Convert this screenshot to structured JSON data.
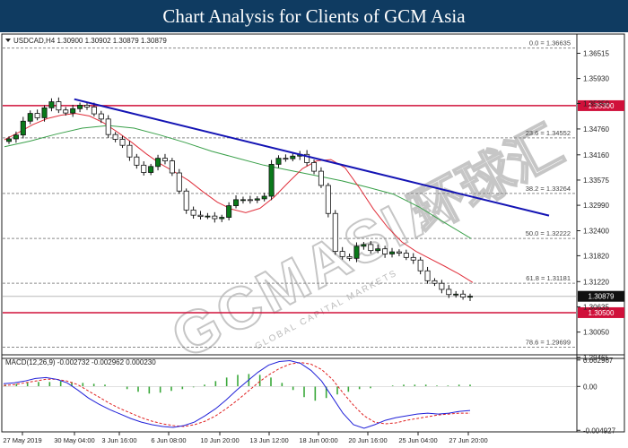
{
  "banner": {
    "title": "Chart Analysis for Clients of GCM Asia"
  },
  "colors": {
    "banner_bg": "#0f3b61",
    "price_line_up": "#0a7a1a",
    "ma_fast": "#e0303c",
    "ma_slow": "#3aa04a",
    "trendline": "#1414b4",
    "level_line": "#d0103a",
    "macd_line": "#2020d8",
    "signal_line": "#e02020",
    "histogram": "#3aa83a"
  },
  "watermark": {
    "brand": "GCMASIA",
    "chinese": "环球汇",
    "subtitle": "GLOBAL CAPITAL MARKETS"
  },
  "chart_data": {
    "type": "candlestick",
    "symbol": "USDCAD,H4",
    "ohlc_header": "USDCAD,H4  1.30900 1.30902 1.30879 1.30879",
    "current_price": 1.30879,
    "current_price_label": "1.30879",
    "ylim": [
      1.2946,
      1.3694
    ],
    "y_ticks": [
      1.36515,
      1.3593,
      1.3535,
      1.3476,
      1.3416,
      1.33575,
      1.3299,
      1.324,
      1.3182,
      1.3122,
      1.30635,
      1.3005,
      1.29465
    ],
    "y_tick_labels": [
      "1.36515",
      "1.35930",
      "1.35350",
      "1.34760",
      "1.34160",
      "1.33575",
      "1.32990",
      "1.32400",
      "1.31820",
      "1.31220",
      "1.30635",
      "1.30050",
      "1.29465"
    ],
    "x_labels": [
      "27 May 2019",
      "30 May 04:00",
      "3 Jun 16:00",
      "6 Jun 08:00",
      "10 Jun 20:00",
      "13 Jun 12:00",
      "18 Jun 00:00",
      "20 Jun 16:00",
      "25 Jun 04:00",
      "27 Jun 20:00"
    ],
    "fibonacci": [
      {
        "label": "0.0 = 1.36635",
        "value": 1.36635
      },
      {
        "label": "23.6 = 1.34552",
        "value": 1.34552
      },
      {
        "label": "38.2 = 1.33264",
        "value": 1.33264
      },
      {
        "label": "50.0 = 1.32222",
        "value": 1.32222
      },
      {
        "label": "61.8 = 1.31181",
        "value": 1.31181
      },
      {
        "label": "78.6 = 1.29699",
        "value": 1.29699
      }
    ],
    "key_levels": [
      {
        "label": "1.35300",
        "value": 1.353
      },
      {
        "label": "1.30500",
        "value": 1.305
      }
    ],
    "trendline": [
      {
        "x": 0.128,
        "y": 1.3545
      },
      {
        "x": 0.993,
        "y": 1.3275
      }
    ],
    "closes": [
      1.3453,
      1.3462,
      1.3494,
      1.3512,
      1.3502,
      1.3525,
      1.3539,
      1.352,
      1.3513,
      1.3523,
      1.3531,
      1.3527,
      1.3511,
      1.3499,
      1.3463,
      1.3452,
      1.3438,
      1.3411,
      1.3392,
      1.3375,
      1.3389,
      1.3408,
      1.3402,
      1.3374,
      1.3332,
      1.3288,
      1.3276,
      1.3273,
      1.3274,
      1.3268,
      1.3271,
      1.3298,
      1.3312,
      1.3312,
      1.3311,
      1.3314,
      1.332,
      1.3394,
      1.3408,
      1.3407,
      1.3413,
      1.3417,
      1.3398,
      1.3378,
      1.3345,
      1.328,
      1.3192,
      1.318,
      1.3176,
      1.3204,
      1.3208,
      1.3194,
      1.3198,
      1.3186,
      1.3191,
      1.3188,
      1.3178,
      1.3172,
      1.3147,
      1.3124,
      1.3118,
      1.3104,
      1.3092,
      1.3093,
      1.3086,
      1.3088
    ],
    "ma_fast": [
      1.3451,
      1.3468,
      1.3486,
      1.35,
      1.3508,
      1.3512,
      1.3506,
      1.349,
      1.3468,
      1.3444,
      1.3418,
      1.3395,
      1.3376,
      1.3356,
      1.333,
      1.3306,
      1.329,
      1.3282,
      1.3292,
      1.3318,
      1.3352,
      1.3384,
      1.3402,
      1.3405,
      1.3386,
      1.334,
      1.329,
      1.3248,
      1.3214,
      1.3192,
      1.3175,
      1.3158,
      1.314,
      1.312
    ],
    "ma_slow": [
      1.3435,
      1.3448,
      1.3464,
      1.3478,
      1.3484,
      1.3478,
      1.3462,
      1.3444,
      1.3424,
      1.3408,
      1.3392,
      1.338,
      1.3368,
      1.3356,
      1.3341,
      1.3325,
      1.3295,
      1.3258,
      1.3222
    ],
    "macd": {
      "name": "MACD(12,26,9)",
      "header": "MACD(12,26,9) -0.002732 -0.002962 0.000230",
      "values": [
        -0.002732,
        -0.002962,
        0.00023
      ],
      "ylim": [
        -0.0049,
        0.00335
      ],
      "y_tick_labels": [
        "0.002967",
        "0.00",
        "-0.004927"
      ],
      "histogram": [
        0.0002,
        0.0003,
        0.0004,
        0.0005,
        0.0005,
        0.0006,
        0.0005,
        0.0004,
        0.0003,
        0.0002,
        0.0,
        -0.0003,
        -0.0006,
        -0.0008,
        -0.0007,
        -0.0005,
        -0.0003,
        -0.0001,
        0.0002,
        0.0006,
        0.001,
        0.0013,
        0.0014,
        0.0013,
        0.001,
        0.0004,
        -0.0004,
        -0.0012,
        -0.0016,
        -0.0013,
        -0.0009,
        -0.0006,
        -0.0003,
        -0.0002,
        0.0,
        0.0001,
        0.0002,
        0.0002,
        0.0002,
        0.0001,
        0.0001,
        0.0002,
        0.0002
      ],
      "macd_line": [
        0.0003,
        0.0004,
        0.0006,
        0.0009,
        0.001,
        0.0008,
        0.0004,
        -0.0004,
        -0.0013,
        -0.002,
        -0.0026,
        -0.0031,
        -0.0036,
        -0.004,
        -0.0043,
        -0.0045,
        -0.0046,
        -0.0044,
        -0.004,
        -0.0033,
        -0.0025,
        -0.0015,
        -0.0004,
        0.0006,
        0.0016,
        0.0024,
        0.0028,
        0.0029,
        0.0026,
        0.0018,
        0.0006,
        -0.0012,
        -0.003,
        -0.0043,
        -0.0047,
        -0.0043,
        -0.0038,
        -0.0035,
        -0.0033,
        -0.0031,
        -0.003,
        -0.0031,
        -0.003,
        -0.0028,
        -0.0027
      ],
      "signal_line": [
        0.0001,
        0.0002,
        0.0004,
        0.0006,
        0.0008,
        0.0008,
        0.0006,
        0.0002,
        -0.0005,
        -0.0012,
        -0.0019,
        -0.0025,
        -0.003,
        -0.0035,
        -0.0039,
        -0.0042,
        -0.0044,
        -0.0045,
        -0.0043,
        -0.0039,
        -0.0033,
        -0.0025,
        -0.0016,
        -0.0006,
        0.0004,
        0.0013,
        0.002,
        0.0025,
        0.0027,
        0.0025,
        0.0019,
        0.0008,
        -0.0007,
        -0.0021,
        -0.0033,
        -0.004,
        -0.0042,
        -0.0041,
        -0.0038,
        -0.0036,
        -0.0034,
        -0.0032,
        -0.0031,
        -0.003,
        -0.003
      ]
    }
  }
}
